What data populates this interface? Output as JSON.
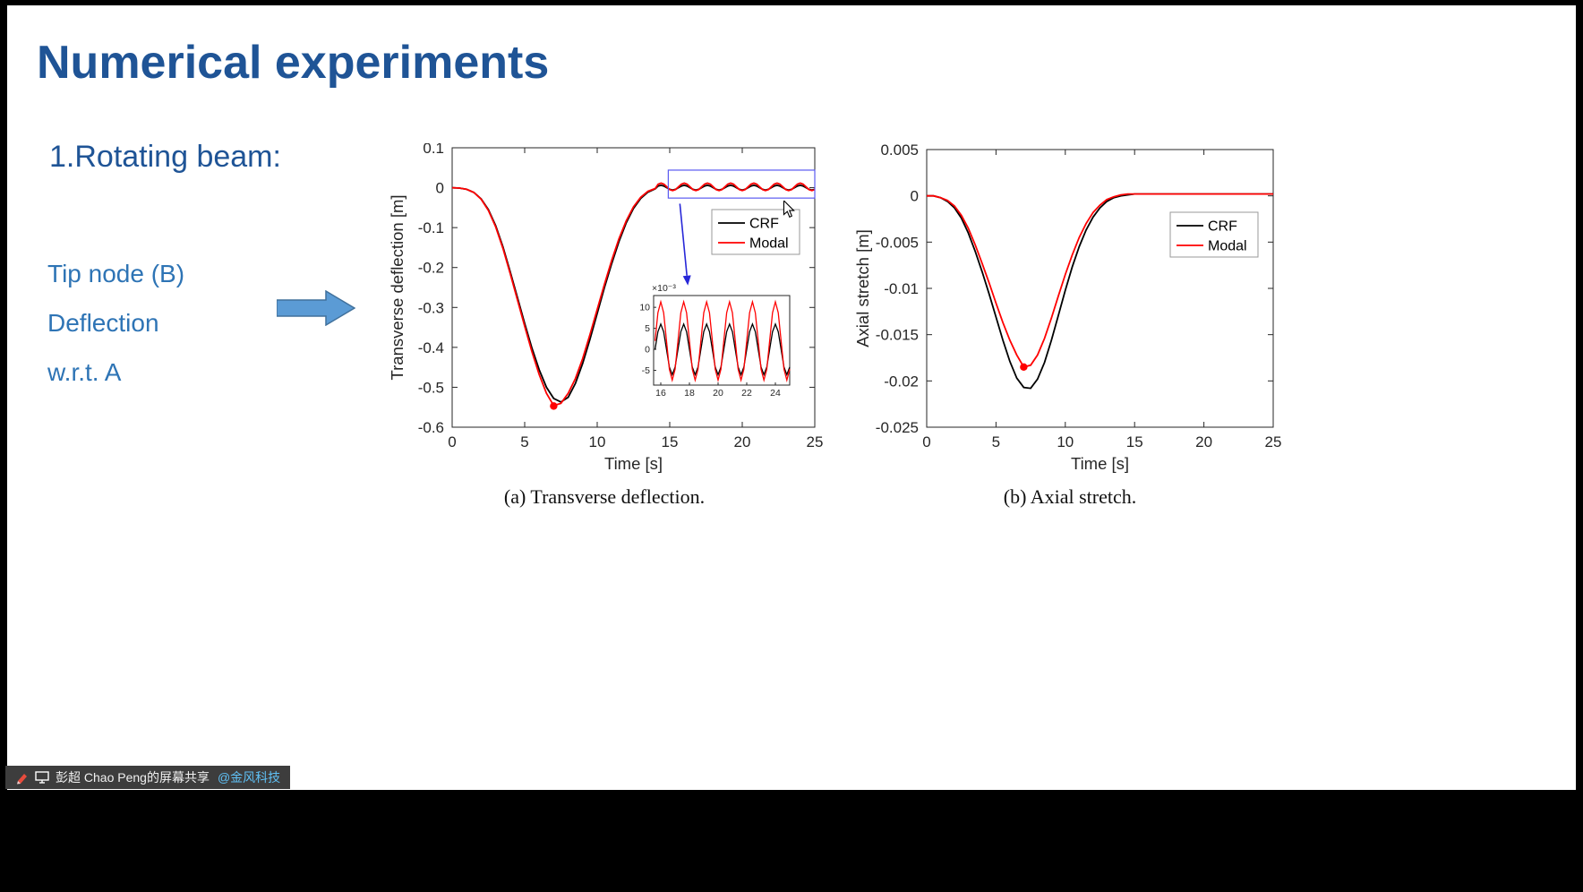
{
  "slide": {
    "title": "Numerical experiments",
    "subtitle": "1.Rotating beam:",
    "lines": [
      "Tip node (B)",
      "Deflection",
      "w.r.t. A"
    ],
    "colors": {
      "title": "#1f5496",
      "subtitle": "#1f5496",
      "bullets": "#2e74b5",
      "arrow_fill": "#5b9bd5",
      "arrow_stroke": "#41719c"
    }
  },
  "toolbar": {
    "share_text": "彭超 Chao Peng的屏幕共享",
    "share_link": "@金风科技",
    "bg": "#3d3d3d",
    "text_color": "#f0f0f0",
    "link_color": "#5fc0f5"
  },
  "chart_data": [
    {
      "id": "transverse",
      "type": "line",
      "xlabel": "Time [s]",
      "ylabel": "Transverse deflection [m]",
      "caption": "(a) Transverse deflection.",
      "xlim": [
        0,
        25
      ],
      "ylim": [
        -0.6,
        0.1
      ],
      "xticks": [
        0,
        5,
        10,
        15,
        20,
        25
      ],
      "xtick_labels": [
        "0",
        "5",
        "10",
        "15",
        "20",
        "25"
      ],
      "ytick_vals": [
        0.1,
        0,
        -0.1,
        -0.2,
        -0.3,
        -0.4,
        -0.5,
        -0.6
      ],
      "ytick_labels": [
        "0.1",
        "0",
        "-0.1",
        "-0.2",
        "-0.3",
        "-0.4",
        "-0.5",
        "-0.6"
      ],
      "legend_position": "upper-right",
      "grid": false,
      "series": [
        {
          "name": "CRF",
          "color": "#000000",
          "x": [
            0,
            0.5,
            1,
            1.5,
            2,
            2.5,
            3,
            3.5,
            4,
            4.5,
            5,
            5.5,
            6,
            6.5,
            7,
            7.5,
            8,
            8.5,
            9,
            9.5,
            10,
            10.5,
            11,
            11.5,
            12,
            12.5,
            13,
            13.5,
            14
          ],
          "y": [
            0,
            -0.001,
            -0.004,
            -0.012,
            -0.028,
            -0.055,
            -0.095,
            -0.148,
            -0.21,
            -0.275,
            -0.34,
            -0.402,
            -0.456,
            -0.5,
            -0.528,
            -0.537,
            -0.525,
            -0.49,
            -0.44,
            -0.38,
            -0.315,
            -0.25,
            -0.19,
            -0.135,
            -0.088,
            -0.052,
            -0.027,
            -0.011,
            -0.003
          ],
          "osc": {
            "start": 14.2,
            "step": 0.2,
            "count": 55,
            "pattern": [
              0.0042,
              0.006,
              0.0042,
              0,
              -0.0042,
              -0.006,
              -0.0042,
              0
            ]
          }
        },
        {
          "name": "Modal",
          "color": "#ff0000",
          "x": [
            0,
            0.5,
            1,
            1.5,
            2,
            2.5,
            3,
            3.5,
            4,
            4.5,
            5,
            5.5,
            6,
            6.5,
            7,
            7.5,
            8,
            8.5,
            9,
            9.5,
            10,
            10.5,
            11,
            11.5,
            12,
            12.5,
            13,
            13.5,
            14
          ],
          "y": [
            0,
            -0.001,
            -0.004,
            -0.012,
            -0.029,
            -0.057,
            -0.098,
            -0.152,
            -0.215,
            -0.281,
            -0.347,
            -0.411,
            -0.468,
            -0.515,
            -0.546,
            -0.54,
            -0.515,
            -0.478,
            -0.428,
            -0.368,
            -0.305,
            -0.242,
            -0.182,
            -0.128,
            -0.083,
            -0.048,
            -0.024,
            -0.009,
            -0.002
          ],
          "osc": {
            "start": 14.2,
            "step": 0.2,
            "count": 55,
            "pattern": [
              0.0087,
              0.0113,
              0.0087,
              0.002,
              -0.0047,
              -0.0073,
              -0.0047,
              0.002
            ]
          }
        }
      ],
      "marker": {
        "x": 7,
        "y": -0.547,
        "color": "#ff0000"
      },
      "highlight": {
        "x": [
          14.9,
          25
        ],
        "y": [
          -0.026,
          0.044
        ]
      },
      "arrow": {
        "from": [
          15.7,
          -0.04
        ],
        "to": [
          16.25,
          -0.245
        ]
      },
      "inset": {
        "xlim": [
          15.5,
          25
        ],
        "ylim": [
          -0.0085,
          0.0128
        ],
        "xticks": [
          16,
          18,
          20,
          22,
          24
        ],
        "ytick_vals": [
          0.01,
          0.005,
          0,
          -0.005
        ],
        "ytick_labels": [
          "10",
          "5",
          "0",
          "-5"
        ],
        "scale_label": "×10⁻³"
      }
    },
    {
      "id": "axial",
      "type": "line",
      "xlabel": "Time [s]",
      "ylabel": "Axial stretch [m]",
      "caption": "(b) Axial stretch.",
      "xlim": [
        0,
        25
      ],
      "ylim": [
        -0.025,
        0.005
      ],
      "xticks": [
        0,
        5,
        10,
        15,
        20,
        25
      ],
      "xtick_labels": [
        "0",
        "5",
        "10",
        "15",
        "20",
        "25"
      ],
      "ytick_vals": [
        0.005,
        0,
        -0.005,
        -0.01,
        -0.015,
        -0.02,
        -0.025
      ],
      "ytick_labels": [
        "0.005",
        "0",
        "-0.005",
        "-0.01",
        "-0.015",
        "-0.02",
        "-0.025"
      ],
      "legend_position": "upper-right",
      "grid": false,
      "series": [
        {
          "name": "CRF",
          "color": "#000000",
          "x": [
            0,
            0.5,
            1,
            1.5,
            2,
            2.5,
            3,
            3.5,
            4,
            4.5,
            5,
            5.5,
            6,
            6.5,
            7,
            7.5,
            8,
            8.5,
            9,
            9.5,
            10,
            10.5,
            11,
            11.5,
            12,
            12.5,
            13,
            13.5,
            14,
            14.5,
            15,
            16,
            17,
            18,
            19,
            20,
            21,
            22,
            23,
            24,
            25
          ],
          "y": [
            0,
            0,
            -0.0002,
            -0.0006,
            -0.0013,
            -0.0024,
            -0.004,
            -0.006,
            -0.0082,
            -0.0106,
            -0.0131,
            -0.0156,
            -0.0179,
            -0.0197,
            -0.0207,
            -0.0208,
            -0.0198,
            -0.018,
            -0.0156,
            -0.0129,
            -0.0102,
            -0.0077,
            -0.0055,
            -0.0037,
            -0.0023,
            -0.0013,
            -0.0006,
            -0.0002,
            0,
            0.0001,
            0.0002,
            0.0002,
            0.0002,
            0.0002,
            0.0002,
            0.0002,
            0.0002,
            0.0002,
            0.0002,
            0.0002,
            0.0002
          ]
        },
        {
          "name": "Modal",
          "color": "#ff0000",
          "x": [
            0,
            0.5,
            1,
            1.5,
            2,
            2.5,
            3,
            3.5,
            4,
            4.5,
            5,
            5.5,
            6,
            6.5,
            7,
            7.5,
            8,
            8.5,
            9,
            9.5,
            10,
            10.5,
            11,
            11.5,
            12,
            12.5,
            13,
            13.5,
            14,
            14.5,
            15,
            16,
            17,
            18,
            19,
            20,
            21,
            22,
            23,
            24,
            25
          ],
          "y": [
            0,
            0,
            -0.0002,
            -0.0005,
            -0.0011,
            -0.0021,
            -0.0035,
            -0.0053,
            -0.0073,
            -0.0094,
            -0.0116,
            -0.0137,
            -0.0156,
            -0.0172,
            -0.0185,
            -0.0183,
            -0.0172,
            -0.0154,
            -0.0132,
            -0.0108,
            -0.0085,
            -0.0064,
            -0.0045,
            -0.003,
            -0.0018,
            -0.001,
            -0.0004,
            -0.0001,
            0.0001,
            0.0002,
            0.0002,
            0.0002,
            0.0002,
            0.0002,
            0.0002,
            0.0002,
            0.0002,
            0.0002,
            0.0002,
            0.0002,
            0.0002
          ]
        }
      ],
      "marker": {
        "x": 7,
        "y": -0.0185,
        "color": "#ff0000"
      }
    }
  ]
}
